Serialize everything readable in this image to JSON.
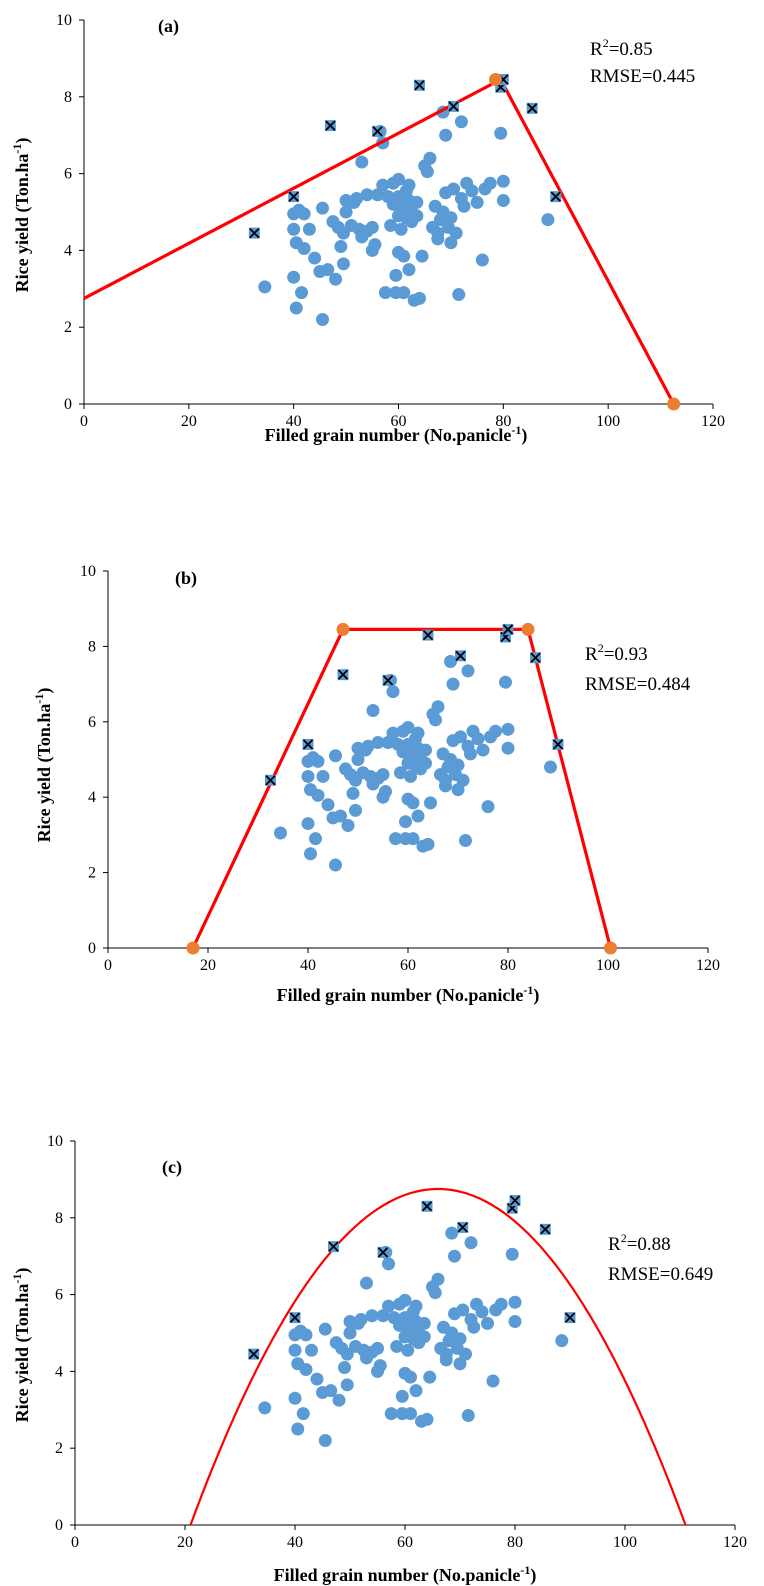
{
  "chart_data": [
    {
      "type": "scatter",
      "panel_label": "(a)",
      "xlabel": "Filled grain number  (No.panicle",
      "xlabel_sup": "-1",
      "xlabel_end": ")",
      "ylabel": "Rice yield  (Ton.ha",
      "ylabel_sup": "-1",
      "ylabel_end": ")",
      "xlim": [
        0,
        120
      ],
      "ylim": [
        0,
        10
      ],
      "xticks": [
        "0",
        "20",
        "40",
        "60",
        "80",
        "100",
        "120"
      ],
      "yticks": [
        "0",
        "2",
        "4",
        "6",
        "8",
        "10"
      ],
      "r2_prefix": "R",
      "r2_sup": "2",
      "r2_value": "=0.85",
      "rmse": "RMSE=0.445",
      "fit": {
        "kind": "polyline",
        "points": [
          [
            0,
            2.75
          ],
          [
            79.5,
            8.45
          ],
          [
            112.5,
            0
          ]
        ]
      },
      "fit_markers": [
        [
          78.5,
          8.45
        ],
        [
          112.5,
          0
        ]
      ]
    },
    {
      "type": "scatter",
      "panel_label": "(b)",
      "xlabel": "Filled grain number  (No.panicle",
      "xlabel_sup": "-1",
      "xlabel_end": ")",
      "ylabel": "Rice yield  (Ton.ha",
      "ylabel_sup": "-1",
      "ylabel_end": ")",
      "xlim": [
        0,
        120
      ],
      "ylim": [
        0,
        10
      ],
      "xticks": [
        "0",
        "20",
        "40",
        "60",
        "80",
        "100",
        "120"
      ],
      "yticks": [
        "0",
        "2",
        "4",
        "6",
        "8",
        "10"
      ],
      "r2_prefix": "R",
      "r2_sup": "2",
      "r2_value": "=0.93",
      "rmse": "RMSE=0.484",
      "fit": {
        "kind": "polyline",
        "points": [
          [
            17,
            0
          ],
          [
            47,
            8.45
          ],
          [
            84,
            8.45
          ],
          [
            100.5,
            0
          ]
        ]
      },
      "fit_markers": [
        [
          17,
          0
        ],
        [
          47,
          8.45
        ],
        [
          84,
          8.45
        ],
        [
          100.5,
          0
        ]
      ]
    },
    {
      "type": "scatter",
      "panel_label": "(c)",
      "xlabel": "Filled grain number  (No.panicle",
      "xlabel_sup": "-1",
      "xlabel_end": ")",
      "ylabel": "Rice yield  (Ton.ha",
      "ylabel_sup": "-1",
      "ylabel_end": ")",
      "xlim": [
        0,
        120
      ],
      "ylim": [
        0,
        10
      ],
      "xticks": [
        "0",
        "20",
        "40",
        "60",
        "80",
        "100",
        "120"
      ],
      "yticks": [
        "0",
        "2",
        "4",
        "6",
        "8",
        "10"
      ],
      "r2_prefix": "R",
      "r2_sup": "2",
      "r2_value": "=0.88",
      "rmse": "RMSE=0.649",
      "fit": {
        "kind": "quadratic",
        "x_from": 21,
        "x_to": 111,
        "vertex_x": 66,
        "vertex_y": 8.75
      },
      "fit_markers": []
    }
  ],
  "shared_points": [
    [
      34.5,
      3.05
    ],
    [
      40,
      4.95
    ],
    [
      40,
      4.55
    ],
    [
      40,
      3.3
    ],
    [
      40.5,
      2.5
    ],
    [
      40.5,
      4.2
    ],
    [
      41,
      5.05
    ],
    [
      41.5,
      2.9
    ],
    [
      42,
      4.95
    ],
    [
      42,
      4.05
    ],
    [
      43,
      4.55
    ],
    [
      44,
      3.8
    ],
    [
      45,
      3.45
    ],
    [
      45.5,
      2.2
    ],
    [
      45.5,
      5.1
    ],
    [
      46.5,
      3.5
    ],
    [
      47.5,
      4.75
    ],
    [
      48,
      3.25
    ],
    [
      48.5,
      4.6
    ],
    [
      49,
      4.1
    ],
    [
      49.5,
      3.65
    ],
    [
      49.5,
      4.45
    ],
    [
      50,
      5.0
    ],
    [
      50,
      5.3
    ],
    [
      51,
      4.65
    ],
    [
      51.5,
      5.25
    ],
    [
      52,
      5.35
    ],
    [
      52.5,
      4.55
    ],
    [
      53,
      6.3
    ],
    [
      53,
      4.35
    ],
    [
      54,
      4.5
    ],
    [
      54,
      5.45
    ],
    [
      55,
      4.0
    ],
    [
      55,
      4.6
    ],
    [
      55.5,
      4.15
    ],
    [
      56,
      5.45
    ],
    [
      56.5,
      7.1
    ],
    [
      57,
      6.8
    ],
    [
      57,
      5.7
    ],
    [
      57.5,
      2.9
    ],
    [
      58,
      5.4
    ],
    [
      58.5,
      4.65
    ],
    [
      59,
      5.75
    ],
    [
      59,
      5.2
    ],
    [
      59.5,
      3.35
    ],
    [
      59.5,
      2.9
    ],
    [
      60,
      4.9
    ],
    [
      60,
      5.4
    ],
    [
      60,
      5.85
    ],
    [
      60,
      3.95
    ],
    [
      60.5,
      4.55
    ],
    [
      60.5,
      5.05
    ],
    [
      61,
      5.15
    ],
    [
      61,
      3.85
    ],
    [
      61,
      2.9
    ],
    [
      61.5,
      5.55
    ],
    [
      61.5,
      4.85
    ],
    [
      62,
      5.3
    ],
    [
      62,
      5.7
    ],
    [
      62,
      3.5
    ],
    [
      62.5,
      4.75
    ],
    [
      62.5,
      5.0
    ],
    [
      63,
      2.7
    ],
    [
      63.5,
      5.25
    ],
    [
      63.5,
      4.9
    ],
    [
      64,
      2.75
    ],
    [
      64.5,
      3.85
    ],
    [
      65,
      6.2
    ],
    [
      65.5,
      6.05
    ],
    [
      66,
      6.4
    ],
    [
      66.5,
      4.6
    ],
    [
      67,
      5.15
    ],
    [
      67.5,
      4.45
    ],
    [
      67.5,
      4.3
    ],
    [
      68,
      4.8
    ],
    [
      68.5,
      7.6
    ],
    [
      68.5,
      5.0
    ],
    [
      69,
      7.0
    ],
    [
      69,
      5.5
    ],
    [
      69.5,
      4.6
    ],
    [
      70,
      4.85
    ],
    [
      70,
      4.2
    ],
    [
      70.5,
      5.6
    ],
    [
      71,
      4.45
    ],
    [
      71.5,
      2.85
    ],
    [
      72,
      7.35
    ],
    [
      72,
      5.35
    ],
    [
      72.5,
      5.15
    ],
    [
      73,
      5.75
    ],
    [
      74,
      5.55
    ],
    [
      75,
      5.25
    ],
    [
      76,
      3.75
    ],
    [
      76.5,
      5.6
    ],
    [
      77.5,
      5.75
    ],
    [
      79.5,
      7.05
    ],
    [
      80,
      5.8
    ],
    [
      80,
      5.3
    ],
    [
      88.5,
      4.8
    ]
  ],
  "shared_boundary_points": [
    [
      32.5,
      4.45
    ],
    [
      40,
      5.4
    ],
    [
      47,
      7.25
    ],
    [
      56,
      7.1
    ],
    [
      64,
      8.3
    ],
    [
      70.5,
      7.75
    ],
    [
      79.5,
      8.25
    ],
    [
      80,
      8.45
    ],
    [
      85.5,
      7.7
    ],
    [
      90,
      5.4
    ]
  ],
  "colors": {
    "points": "#5b9bd5",
    "boundary_points": "#5b9bd5",
    "fit_line": "#ff0000",
    "fit_markers": "#ed7d31",
    "axis": "#000000"
  }
}
